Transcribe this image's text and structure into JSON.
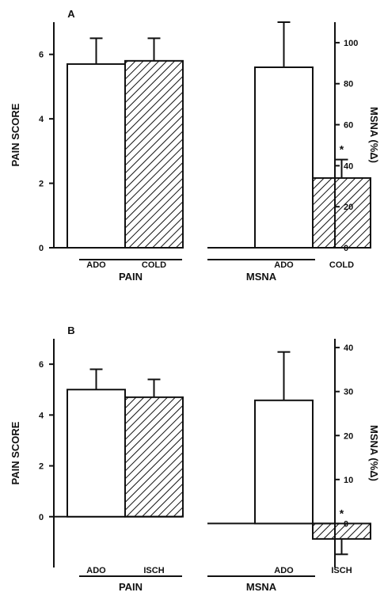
{
  "chart_data": [
    {
      "type": "bar",
      "panel_label": "A",
      "left_axis": {
        "label": "PAIN SCORE",
        "ylim": [
          0,
          7
        ],
        "ticks": [
          "0",
          "2",
          "4",
          "6"
        ]
      },
      "right_axis": {
        "label": "MSNA (%Δ)",
        "ylim": [
          0,
          110
        ],
        "ticks": [
          "0",
          "20",
          "40",
          "60",
          "80",
          "100"
        ]
      },
      "groups": [
        {
          "name": "PAIN",
          "axis": "left",
          "categories": [
            "ADO",
            "COLD"
          ],
          "values": [
            5.7,
            5.8
          ],
          "errors": [
            0.8,
            0.7
          ],
          "fills": [
            "open",
            "hatched"
          ],
          "annotations": [
            "",
            ""
          ]
        },
        {
          "name": "MSNA",
          "axis": "right",
          "categories": [
            "ADO",
            "COLD"
          ],
          "values": [
            88,
            34
          ],
          "errors": [
            22,
            9
          ],
          "fills": [
            "open",
            "hatched"
          ],
          "annotations": [
            "",
            "*"
          ]
        }
      ],
      "grid": false
    },
    {
      "type": "bar",
      "panel_label": "B",
      "left_axis": {
        "label": "PAIN SCORE",
        "ylim": [
          -2,
          7
        ],
        "ticks": [
          "0",
          "2",
          "4",
          "6"
        ]
      },
      "right_axis": {
        "label": "MSNA (%Δ)",
        "ylim": [
          -10,
          42
        ],
        "ticks": [
          "0",
          "10",
          "20",
          "30",
          "40"
        ]
      },
      "groups": [
        {
          "name": "PAIN",
          "axis": "left",
          "categories": [
            "ADO",
            "ISCH"
          ],
          "values": [
            5.0,
            4.7
          ],
          "errors": [
            0.8,
            0.7
          ],
          "fills": [
            "open",
            "hatched"
          ],
          "annotations": [
            "",
            ""
          ]
        },
        {
          "name": "MSNA",
          "axis": "right",
          "categories": [
            "ADO",
            "ISCH"
          ],
          "values": [
            28,
            -3.5
          ],
          "errors": [
            11,
            3.5
          ],
          "fills": [
            "open",
            "hatched"
          ],
          "annotations": [
            "",
            "*"
          ]
        }
      ],
      "grid": false
    }
  ]
}
